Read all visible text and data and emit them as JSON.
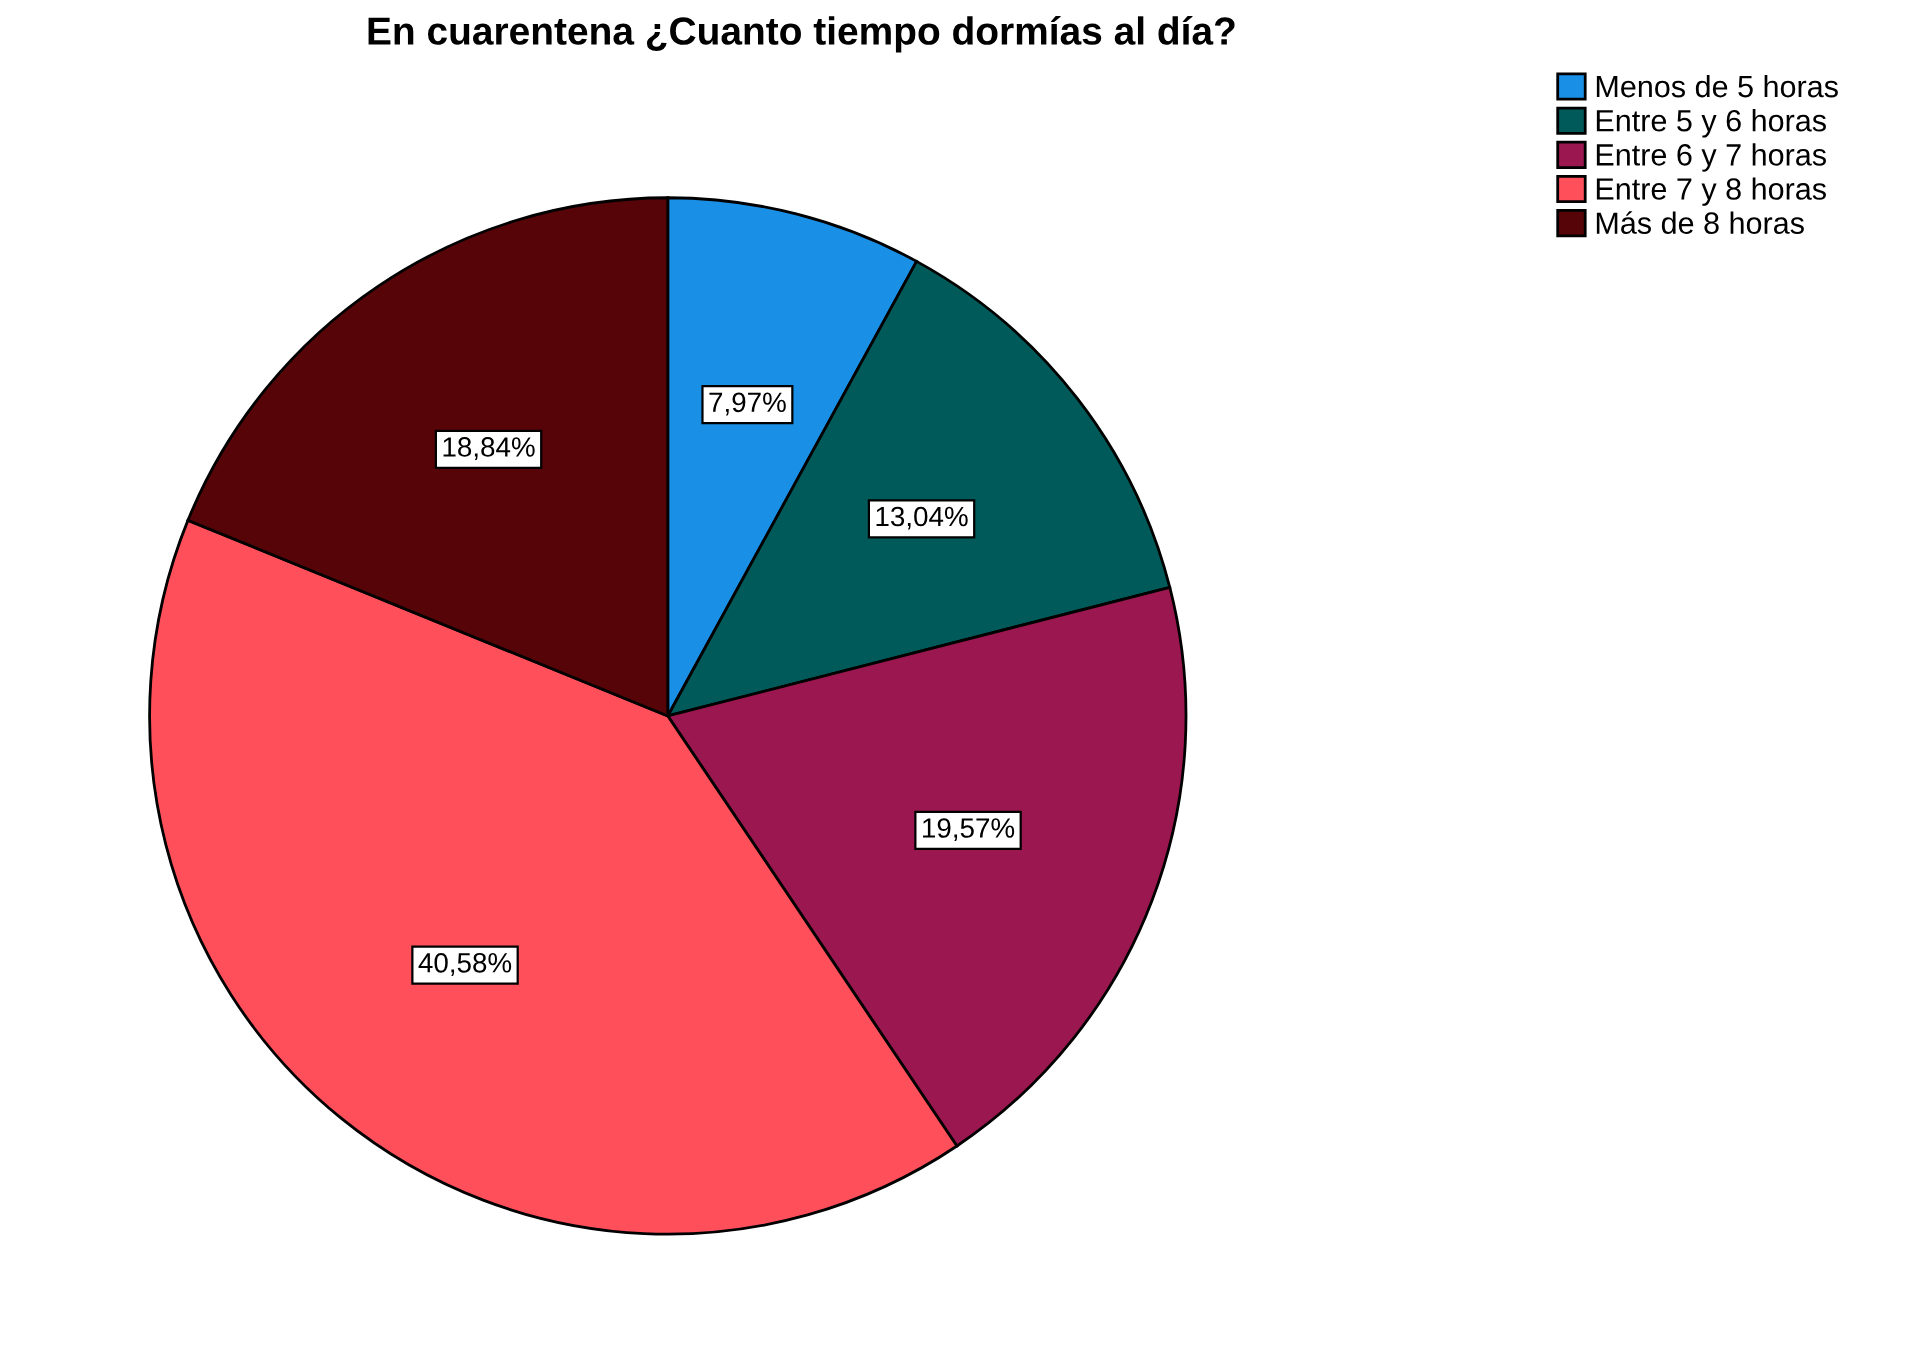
{
  "chart_data": {
    "type": "pie",
    "title": "En cuarentena ¿Cuanto tiempo dormías al día?",
    "categories": [
      "Menos de 5 horas",
      "Entre 5 y 6 horas",
      "Entre 6 y 7 horas",
      "Entre 7 y 8 horas",
      "Más de 8 horas"
    ],
    "values": [
      7.97,
      13.04,
      19.57,
      40.58,
      18.84
    ],
    "colors": [
      "#1a8fe6",
      "#005a5a",
      "#9b1750",
      "#ff4f5a",
      "#570408"
    ],
    "value_labels": [
      "7,97%",
      "13,04%",
      "19,57%",
      "40,58%",
      "18,84%"
    ],
    "legend": "top right"
  }
}
